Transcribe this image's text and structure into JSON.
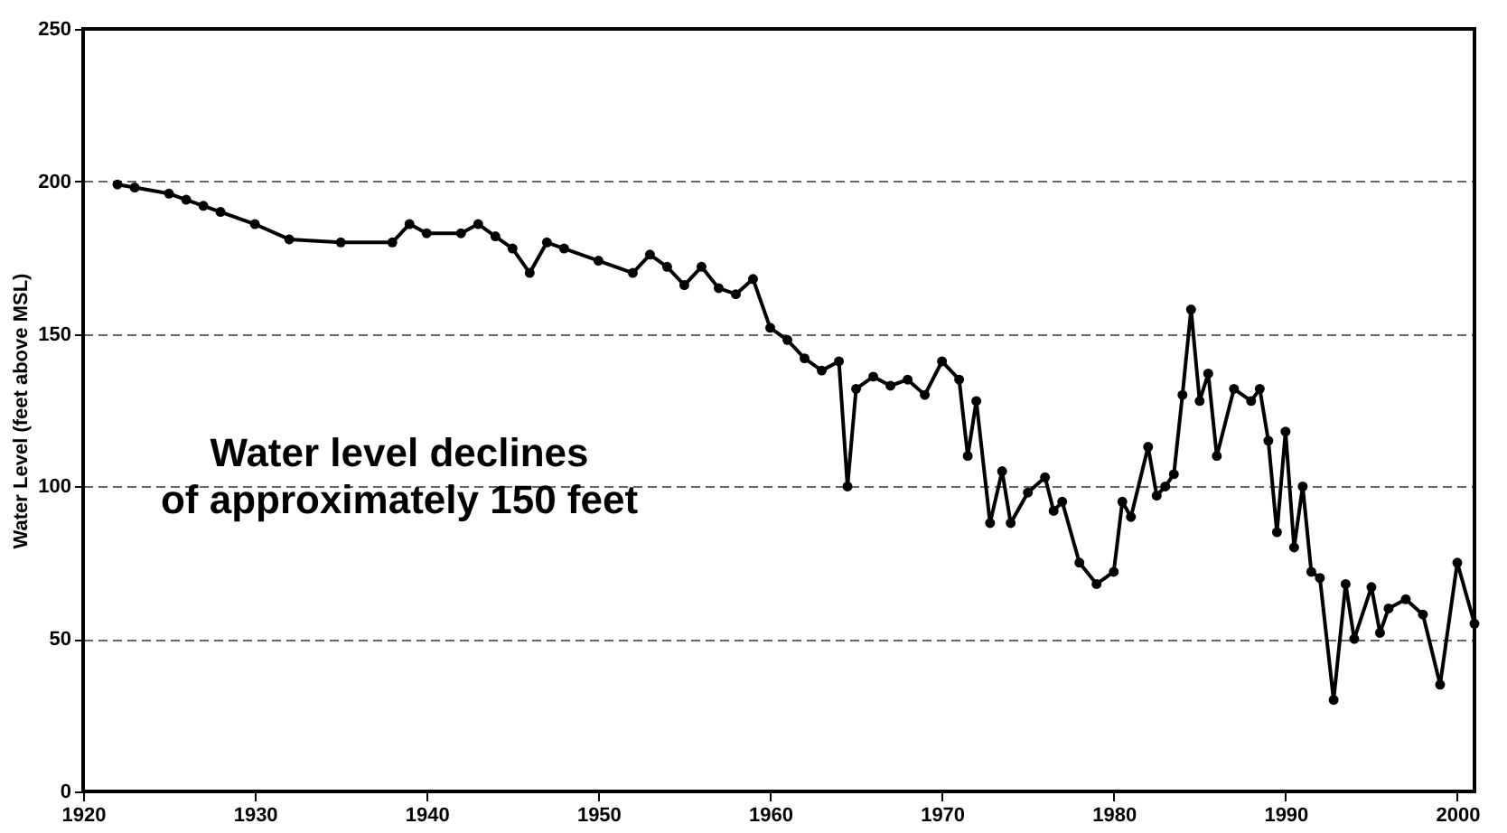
{
  "chart_data": {
    "type": "line",
    "ylabel": "Water Level (feet above MSL)",
    "annotations": [
      "Water level declines\nof approximately 150 feet"
    ],
    "xlim": [
      1920,
      2001
    ],
    "xticks": [
      1920,
      1930,
      1940,
      1950,
      1960,
      1970,
      1980,
      1990,
      2000
    ],
    "ylim": [
      0,
      250
    ],
    "yticks": [
      0,
      50,
      100,
      150,
      200,
      250
    ],
    "grid": "y",
    "marker": "circle",
    "line_style": "solid",
    "legend": false,
    "series": [
      {
        "color": "#000000",
        "x": [
          1922,
          1923,
          1925,
          1926,
          1927,
          1928,
          1930,
          1932,
          1935,
          1938,
          1939,
          1940,
          1942,
          1943,
          1944,
          1945,
          1946,
          1947,
          1948,
          1950,
          1952,
          1953,
          1954,
          1955,
          1956,
          1957,
          1958,
          1959,
          1960,
          1961,
          1962,
          1963,
          1964,
          1964.5,
          1965,
          1966,
          1967,
          1968,
          1969,
          1970,
          1971,
          1971.5,
          1972,
          1972.8,
          1973.5,
          1974,
          1975,
          1976,
          1976.5,
          1977,
          1978,
          1979,
          1980,
          1980.5,
          1981,
          1982,
          1982.5,
          1983,
          1983.5,
          1984,
          1984.5,
          1985,
          1985.5,
          1986,
          1987,
          1988,
          1988.5,
          1989,
          1989.5,
          1990,
          1990.5,
          1991,
          1991.5,
          1992,
          1992.8,
          1993.5,
          1994,
          1995,
          1995.5,
          1996,
          1997,
          1998,
          1999,
          2000,
          2001
        ],
        "values": [
          199,
          198,
          196,
          194,
          192,
          190,
          186,
          181,
          180,
          180,
          186,
          183,
          183,
          186,
          182,
          178,
          170,
          180,
          178,
          174,
          170,
          176,
          172,
          166,
          172,
          165,
          163,
          168,
          152,
          148,
          142,
          138,
          141,
          100,
          132,
          136,
          133,
          135,
          130,
          141,
          135,
          110,
          128,
          88,
          105,
          88,
          98,
          103,
          92,
          95,
          75,
          68,
          72,
          95,
          90,
          113,
          97,
          100,
          104,
          130,
          158,
          128,
          137,
          110,
          132,
          128,
          132,
          115,
          85,
          118,
          80,
          100,
          72,
          70,
          30,
          68,
          50,
          67,
          52,
          60,
          63,
          58,
          35,
          75,
          55
        ]
      }
    ]
  }
}
